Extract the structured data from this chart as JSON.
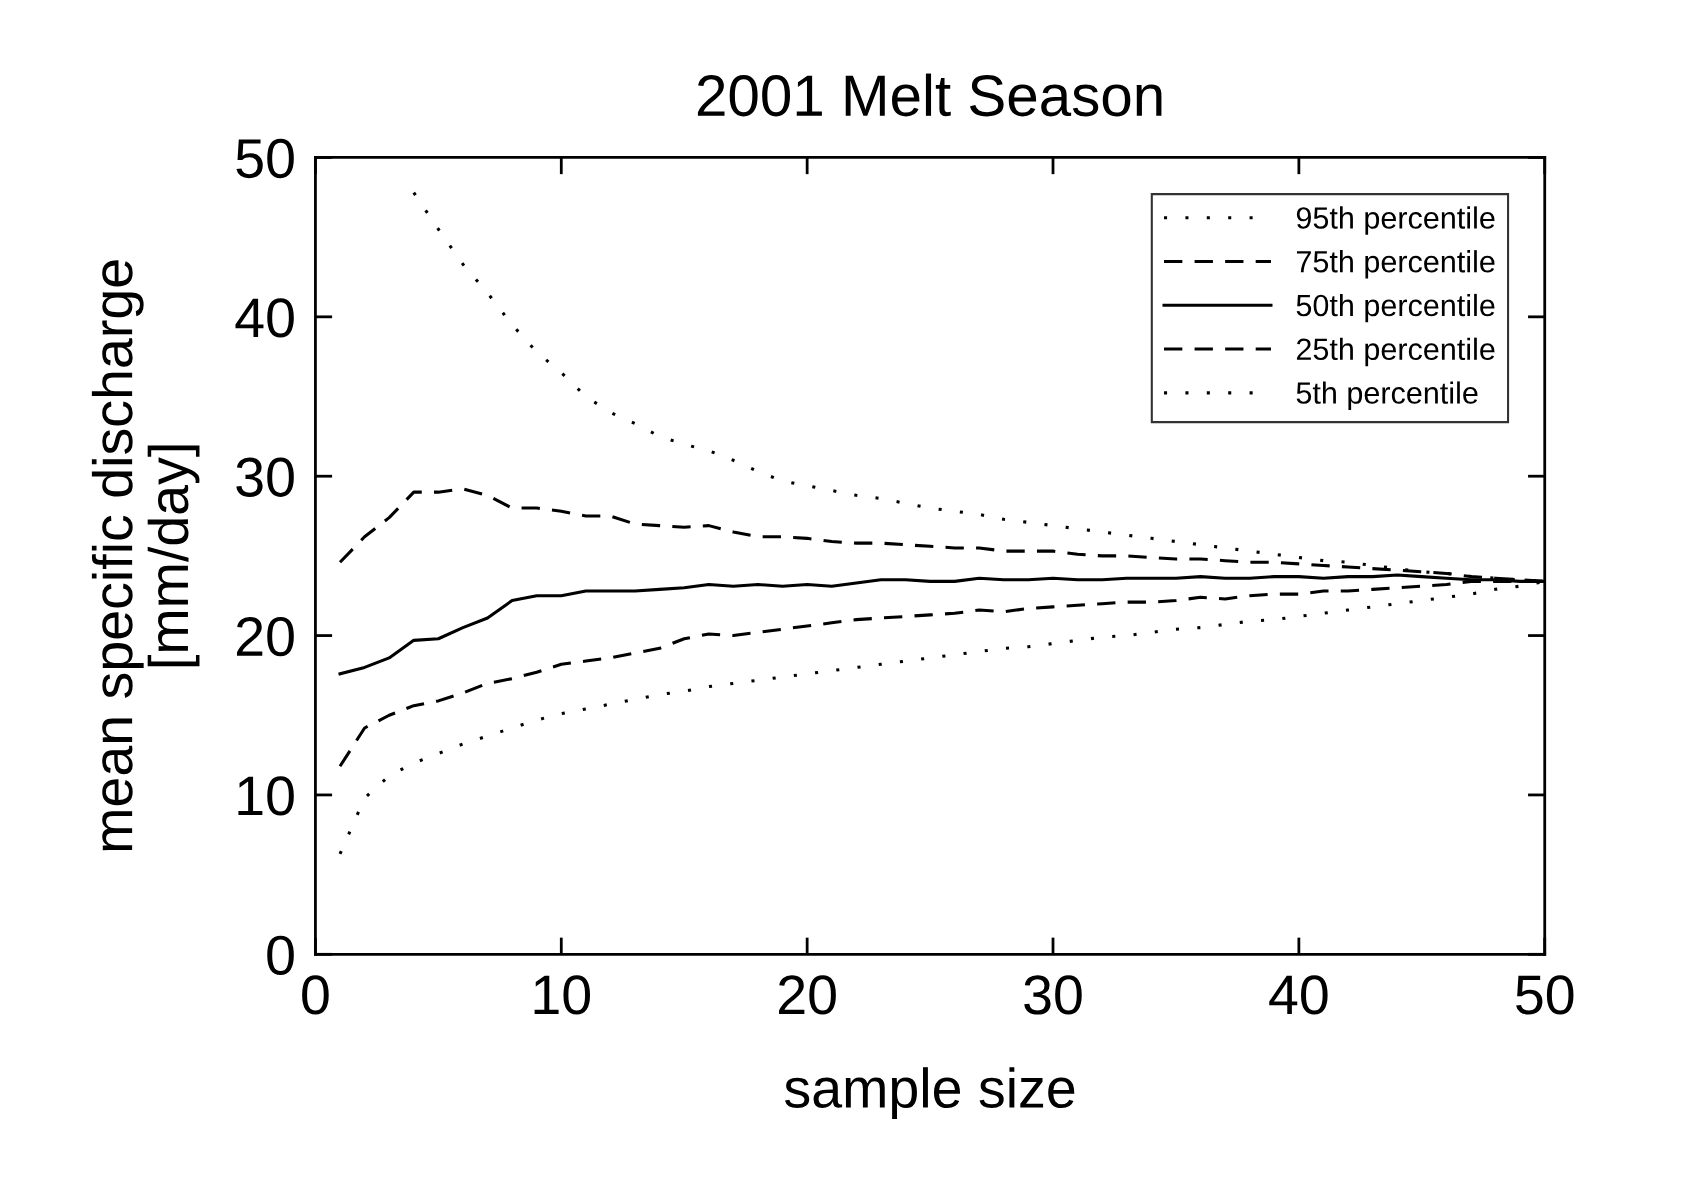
{
  "chart_data": {
    "type": "line",
    "title": "2001 Melt Season",
    "xlabel": "sample size",
    "ylabel": "mean specific discharge\n[mm/day]",
    "xlim": [
      0,
      50
    ],
    "ylim": [
      0,
      50
    ],
    "xticks": [
      0,
      10,
      20,
      30,
      40,
      50
    ],
    "yticks": [
      0,
      10,
      20,
      30,
      40,
      50
    ],
    "grid": false,
    "legend": "top right",
    "series": [
      {
        "name": "95th percentile",
        "color": "#000000",
        "line_style": "dotted",
        "x": [
          4,
          5,
          6,
          7,
          8,
          9,
          10,
          11,
          12,
          13,
          14,
          15,
          16,
          17,
          18,
          19,
          20,
          21,
          22,
          23,
          24,
          25,
          26,
          27,
          28,
          29,
          30,
          31,
          32,
          33,
          34,
          35,
          36,
          37,
          38,
          39,
          40,
          41,
          42,
          43,
          44,
          45,
          46,
          47,
          48,
          49,
          50
        ],
        "values": [
          47.8,
          45.5,
          43.3,
          41.5,
          39.5,
          37.8,
          36.5,
          35.0,
          34.0,
          33.3,
          32.5,
          32.0,
          31.6,
          31.0,
          30.3,
          29.7,
          29.4,
          29.1,
          28.8,
          28.6,
          28.3,
          28.0,
          27.8,
          27.6,
          27.3,
          27.1,
          26.9,
          26.7,
          26.5,
          26.3,
          26.1,
          25.9,
          25.7,
          25.5,
          25.3,
          25.1,
          24.9,
          24.7,
          24.6,
          24.4,
          24.2,
          24.0,
          23.9,
          23.7,
          23.6,
          23.5,
          23.4
        ]
      },
      {
        "name": "75th percentile",
        "color": "#000000",
        "line_style": "dashed",
        "x": [
          1,
          2,
          3,
          4,
          5,
          6,
          7,
          8,
          9,
          10,
          11,
          12,
          13,
          14,
          15,
          16,
          17,
          18,
          19,
          20,
          21,
          22,
          23,
          24,
          25,
          26,
          27,
          28,
          29,
          30,
          31,
          32,
          33,
          34,
          35,
          36,
          37,
          38,
          39,
          40,
          41,
          42,
          43,
          44,
          45,
          46,
          47,
          48,
          49,
          50
        ],
        "values": [
          24.6,
          26.2,
          27.4,
          29.0,
          29.0,
          29.2,
          28.8,
          28.0,
          28.0,
          27.8,
          27.5,
          27.5,
          27.0,
          26.9,
          26.8,
          26.9,
          26.5,
          26.2,
          26.2,
          26.1,
          25.9,
          25.8,
          25.8,
          25.7,
          25.6,
          25.5,
          25.5,
          25.3,
          25.3,
          25.3,
          25.1,
          25.0,
          25.0,
          24.9,
          24.8,
          24.8,
          24.7,
          24.6,
          24.6,
          24.5,
          24.4,
          24.3,
          24.2,
          24.1,
          24.0,
          23.9,
          23.7,
          23.6,
          23.5,
          23.4
        ]
      },
      {
        "name": "50th percentile",
        "color": "#000000",
        "line_style": "solid",
        "x": [
          1,
          2,
          3,
          4,
          5,
          6,
          7,
          8,
          9,
          10,
          11,
          12,
          13,
          14,
          15,
          16,
          17,
          18,
          19,
          20,
          21,
          22,
          23,
          24,
          25,
          26,
          27,
          28,
          29,
          30,
          31,
          32,
          33,
          34,
          35,
          36,
          37,
          38,
          39,
          40,
          41,
          42,
          43,
          44,
          45,
          46,
          47,
          48,
          49,
          50
        ],
        "values": [
          17.6,
          18.0,
          18.6,
          19.7,
          19.8,
          20.5,
          21.1,
          22.2,
          22.5,
          22.5,
          22.8,
          22.8,
          22.8,
          22.9,
          23.0,
          23.2,
          23.1,
          23.2,
          23.1,
          23.2,
          23.1,
          23.3,
          23.5,
          23.5,
          23.4,
          23.4,
          23.6,
          23.5,
          23.5,
          23.6,
          23.5,
          23.5,
          23.6,
          23.6,
          23.6,
          23.7,
          23.6,
          23.6,
          23.7,
          23.7,
          23.6,
          23.7,
          23.7,
          23.8,
          23.7,
          23.6,
          23.5,
          23.5,
          23.4,
          23.4
        ]
      },
      {
        "name": "25th percentile",
        "color": "#000000",
        "line_style": "dashed",
        "x": [
          1,
          2,
          3,
          4,
          5,
          6,
          7,
          8,
          9,
          10,
          11,
          12,
          13,
          14,
          15,
          16,
          17,
          18,
          19,
          20,
          21,
          22,
          23,
          24,
          25,
          26,
          27,
          28,
          29,
          30,
          31,
          32,
          33,
          34,
          35,
          36,
          37,
          38,
          39,
          40,
          41,
          42,
          43,
          44,
          45,
          46,
          47,
          48,
          49,
          50
        ],
        "values": [
          11.8,
          14.2,
          15.0,
          15.6,
          15.9,
          16.4,
          17.0,
          17.3,
          17.7,
          18.2,
          18.4,
          18.6,
          18.9,
          19.2,
          19.8,
          20.1,
          20.0,
          20.2,
          20.4,
          20.6,
          20.8,
          21.0,
          21.1,
          21.2,
          21.3,
          21.4,
          21.6,
          21.5,
          21.7,
          21.8,
          21.9,
          22.0,
          22.1,
          22.1,
          22.2,
          22.4,
          22.3,
          22.5,
          22.6,
          22.6,
          22.8,
          22.8,
          22.9,
          23.0,
          23.1,
          23.2,
          23.4,
          23.4,
          23.4,
          23.4
        ]
      },
      {
        "name": "5th percentile",
        "color": "#000000",
        "line_style": "dotted",
        "x": [
          1,
          2,
          3,
          4,
          5,
          6,
          7,
          8,
          9,
          10,
          11,
          12,
          13,
          14,
          15,
          16,
          17,
          18,
          19,
          20,
          21,
          22,
          23,
          24,
          25,
          26,
          27,
          28,
          29,
          30,
          31,
          32,
          33,
          34,
          35,
          36,
          37,
          38,
          39,
          40,
          41,
          42,
          43,
          44,
          45,
          46,
          47,
          48,
          49,
          50
        ],
        "values": [
          6.3,
          9.8,
          11.2,
          12.0,
          12.6,
          13.2,
          13.7,
          14.2,
          14.7,
          15.1,
          15.4,
          15.7,
          16.0,
          16.3,
          16.5,
          16.8,
          17.0,
          17.2,
          17.4,
          17.6,
          17.8,
          18.0,
          18.2,
          18.4,
          18.6,
          18.8,
          19.0,
          19.2,
          19.3,
          19.5,
          19.7,
          19.9,
          20.0,
          20.2,
          20.4,
          20.5,
          20.7,
          20.9,
          21.0,
          21.2,
          21.4,
          21.6,
          21.8,
          22.0,
          22.2,
          22.4,
          22.6,
          22.9,
          23.1,
          23.4
        ]
      }
    ]
  }
}
